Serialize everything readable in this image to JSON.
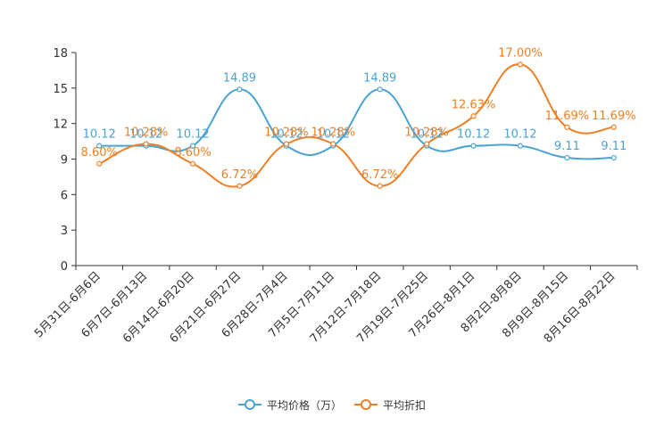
{
  "chart_data": {
    "type": "line",
    "title": "",
    "xlabel": "",
    "ylabel": "",
    "ylim": [
      0,
      18
    ],
    "yticks": [
      0,
      3,
      6,
      9,
      12,
      15,
      18
    ],
    "categories": [
      "5月31日-6月6日",
      "6月7日-6月13日",
      "6月14日-6月20日",
      "6月21日-6月27日",
      "6月28日-7月4日",
      "7月5日-7月11日",
      "7月12日-7月18日",
      "7月19日-7月25日",
      "7月26日-8月1日",
      "8月2日-8月8日",
      "8月9日-8月15日",
      "8月16日-8月22日"
    ],
    "series": [
      {
        "name": "平均价格（万）",
        "color": "#4aa3d0",
        "values": [
          10.12,
          10.12,
          10.12,
          14.89,
          10.12,
          10.12,
          14.89,
          10.12,
          10.12,
          10.12,
          9.11,
          9.11
        ],
        "labels": [
          "10.12",
          "10.12",
          "10.12",
          "14.89",
          "10.12",
          "10.12",
          "14.89",
          "10.12",
          "10.12",
          "10.12",
          "9.11",
          "9.11"
        ]
      },
      {
        "name": "平均折扣",
        "color": "#f07f24",
        "values": [
          8.6,
          10.28,
          8.6,
          6.72,
          10.28,
          10.28,
          6.72,
          10.28,
          12.63,
          17.0,
          11.69,
          11.69
        ],
        "labels": [
          "8.60%",
          "10.28%",
          "8.60%",
          "6.72%",
          "10.28%",
          "10.28%",
          "6.72%",
          "10.28%",
          "12.63%",
          "17.00%",
          "11.69%",
          "11.69%"
        ]
      }
    ],
    "grid": false,
    "legend": "bottom-center"
  }
}
